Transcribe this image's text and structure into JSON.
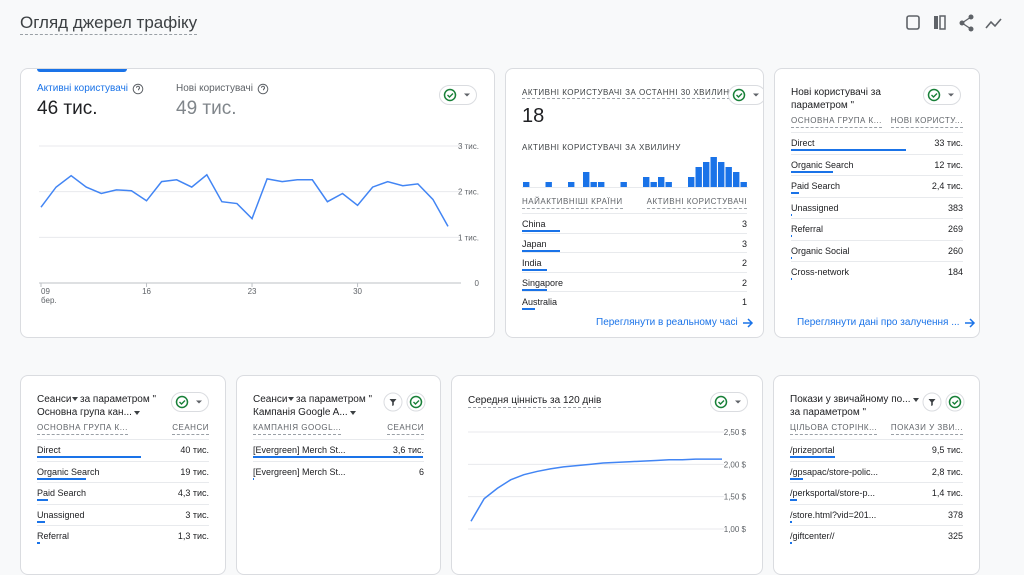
{
  "header": {
    "title": "Огляд джерел трафіку"
  },
  "overview": {
    "metrics": [
      {
        "label": "Активні користувачі",
        "value": "46 тис."
      },
      {
        "label": "Нові користувачі",
        "value": "49 тис."
      }
    ],
    "chart": {
      "type": "line",
      "color": "#4285f4",
      "x": [
        0,
        1,
        2,
        3,
        4,
        5,
        6,
        7,
        8,
        9,
        10,
        11,
        12,
        13,
        14,
        15,
        16,
        17,
        18,
        19,
        20,
        21,
        22,
        23,
        24,
        25,
        26,
        27
      ],
      "values": [
        1660,
        2100,
        2350,
        2100,
        1960,
        2040,
        2020,
        1800,
        2220,
        2260,
        2100,
        2370,
        1780,
        1740,
        1410,
        2280,
        2220,
        2260,
        2260,
        1780,
        1960,
        1700,
        2100,
        2220,
        2130,
        2170,
        1830,
        1240
      ],
      "xlim": [
        0,
        27
      ],
      "xticks": [
        {
          "value": 0,
          "label": "09"
        },
        {
          "value": 7,
          "label": "16"
        },
        {
          "value": 14,
          "label": "23"
        },
        {
          "value": 21,
          "label": "30"
        }
      ],
      "x_month": "бер.",
      "ylim": [
        0,
        3000
      ],
      "yticks": [
        {
          "value": 0,
          "label": "0"
        },
        {
          "value": 1000,
          "label": "1 тис."
        },
        {
          "value": 2000,
          "label": "2 тис."
        },
        {
          "value": 3000,
          "label": "3 тис."
        }
      ],
      "grid": true
    }
  },
  "realtime": {
    "title": "АКТИВНІ КОРИСТУВАЧІ ЗА ОСТАННІ 30 ХВИЛИН",
    "value": "18",
    "subtitle": "АКТИВНІ КОРИСТУВАЧІ ЗА ХВИЛИНУ",
    "chart": {
      "type": "bar",
      "color": "#1a73e8",
      "values": [
        1,
        0,
        0,
        1,
        0,
        0,
        1,
        0,
        3,
        1,
        1,
        0,
        0,
        1,
        0,
        0,
        2,
        1,
        2,
        1,
        0,
        0,
        2,
        4,
        5,
        6,
        5,
        4,
        3,
        1
      ]
    },
    "table": {
      "columns": [
        "НАЙАКТИВНІШІ КРАЇНИ",
        "АКТИВНІ КОРИСТУВАЧІ"
      ],
      "rows": [
        {
          "label": "China",
          "value": 3
        },
        {
          "label": "Japan",
          "value": 3
        },
        {
          "label": "India",
          "value": 2
        },
        {
          "label": "Singapore",
          "value": 2
        },
        {
          "label": "Australia",
          "value": 1
        }
      ]
    },
    "link": "Переглянути в реальному часі"
  },
  "new_users": {
    "title": [
      "Нові користувачі за",
      "параметром \""
    ],
    "table": {
      "columns": [
        "ОСНОВНА ГРУПА К...",
        "НОВІ КОРИСТУ..."
      ],
      "rows": [
        {
          "label": "Direct",
          "value": 33000,
          "value_label": "33 тис."
        },
        {
          "label": "Organic Search",
          "value": 12000,
          "value_label": "12 тис."
        },
        {
          "label": "Paid Search",
          "value": 2400,
          "value_label": "2,4 тис."
        },
        {
          "label": "Unassigned",
          "value": 383
        },
        {
          "label": "Referral",
          "value": 269
        },
        {
          "label": "Organic Social",
          "value": 260
        },
        {
          "label": "Cross-network",
          "value": 184
        }
      ]
    },
    "link": "Переглянути дані про залучення ..."
  },
  "sessions_channel": {
    "title": [
      "Сеанси",
      "за параметром \"",
      "Основна група кан..."
    ],
    "table": {
      "columns": [
        "ОСНОВНА ГРУПА К...",
        "СЕАНСИ"
      ],
      "rows": [
        {
          "label": "Direct",
          "value": 40000,
          "value_label": "40 тис."
        },
        {
          "label": "Organic Search",
          "value": 19000,
          "value_label": "19 тис."
        },
        {
          "label": "Paid Search",
          "value": 4300,
          "value_label": "4,3 тис."
        },
        {
          "label": "Unassigned",
          "value": 3000,
          "value_label": "3 тис."
        },
        {
          "label": "Referral",
          "value": 1300,
          "value_label": "1,3 тис."
        }
      ]
    }
  },
  "sessions_campaign": {
    "title": [
      "Сеанси",
      "за параметром \"",
      "Кампанія Google A..."
    ],
    "table": {
      "columns": [
        "КАМПАНІЯ GOOGL...",
        "СЕАНСИ"
      ],
      "rows": [
        {
          "label": "[Evergreen] Merch St...",
          "value": 3600,
          "value_label": "3,6 тис."
        },
        {
          "label": "[Evergreen] Merch St...",
          "value": 6
        }
      ]
    }
  },
  "ltv": {
    "title": "Середня цінність за 120 днів",
    "chart": {
      "type": "line",
      "color": "#4285f4",
      "values": [
        1.12,
        1.47,
        1.63,
        1.76,
        1.84,
        1.89,
        1.93,
        1.96,
        1.98,
        2.0,
        2.02,
        2.03,
        2.04,
        2.05,
        2.06,
        2.07,
        2.07,
        2.08,
        2.08,
        2.08
      ],
      "ylim": [
        1,
        2.5
      ],
      "yticks": [
        {
          "value": 1,
          "label": "1,00 $"
        },
        {
          "value": 1.5,
          "label": "1,50 $"
        },
        {
          "value": 2,
          "label": "2,00 $"
        },
        {
          "value": 2.5,
          "label": "2,50 $"
        }
      ],
      "grid": true
    }
  },
  "views": {
    "title": [
      "Покази у звичайному по...",
      "за параметром \""
    ],
    "table": {
      "columns": [
        "ЦІЛЬОВА СТОРІНК...",
        "ПОКАЗИ У ЗВИ..."
      ],
      "rows": [
        {
          "label": "/prizeportal",
          "value": 9500,
          "value_label": "9,5 тис."
        },
        {
          "label": "/gpsapac/store-polic...",
          "value": 2800,
          "value_label": "2,8 тис."
        },
        {
          "label": "/perksportal/store-p...",
          "value": 1400,
          "value_label": "1,4 тис."
        },
        {
          "label": "/store.html?vid=201...",
          "value": 378
        },
        {
          "label": "/giftcenter//",
          "value": 325
        }
      ]
    }
  }
}
